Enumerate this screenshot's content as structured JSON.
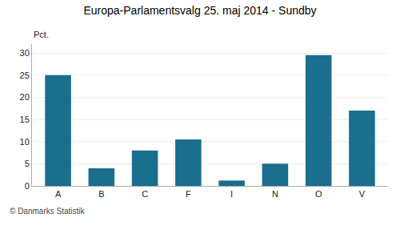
{
  "chart_data": {
    "type": "bar",
    "title": "Europa-Parlamentsvalg 25. maj 2014 - Sundby",
    "categories": [
      "A",
      "B",
      "C",
      "F",
      "I",
      "N",
      "O",
      "V"
    ],
    "values": [
      25.0,
      4.0,
      8.0,
      10.5,
      1.2,
      5.0,
      29.5,
      17.0
    ],
    "color": "#1a6e8e",
    "ylabel": "Pct.",
    "footer": "© Danmarks Statistik",
    "ylim": [
      0,
      32
    ],
    "yticks": [
      0,
      5,
      10,
      15,
      20,
      25,
      30
    ],
    "grid": true
  }
}
